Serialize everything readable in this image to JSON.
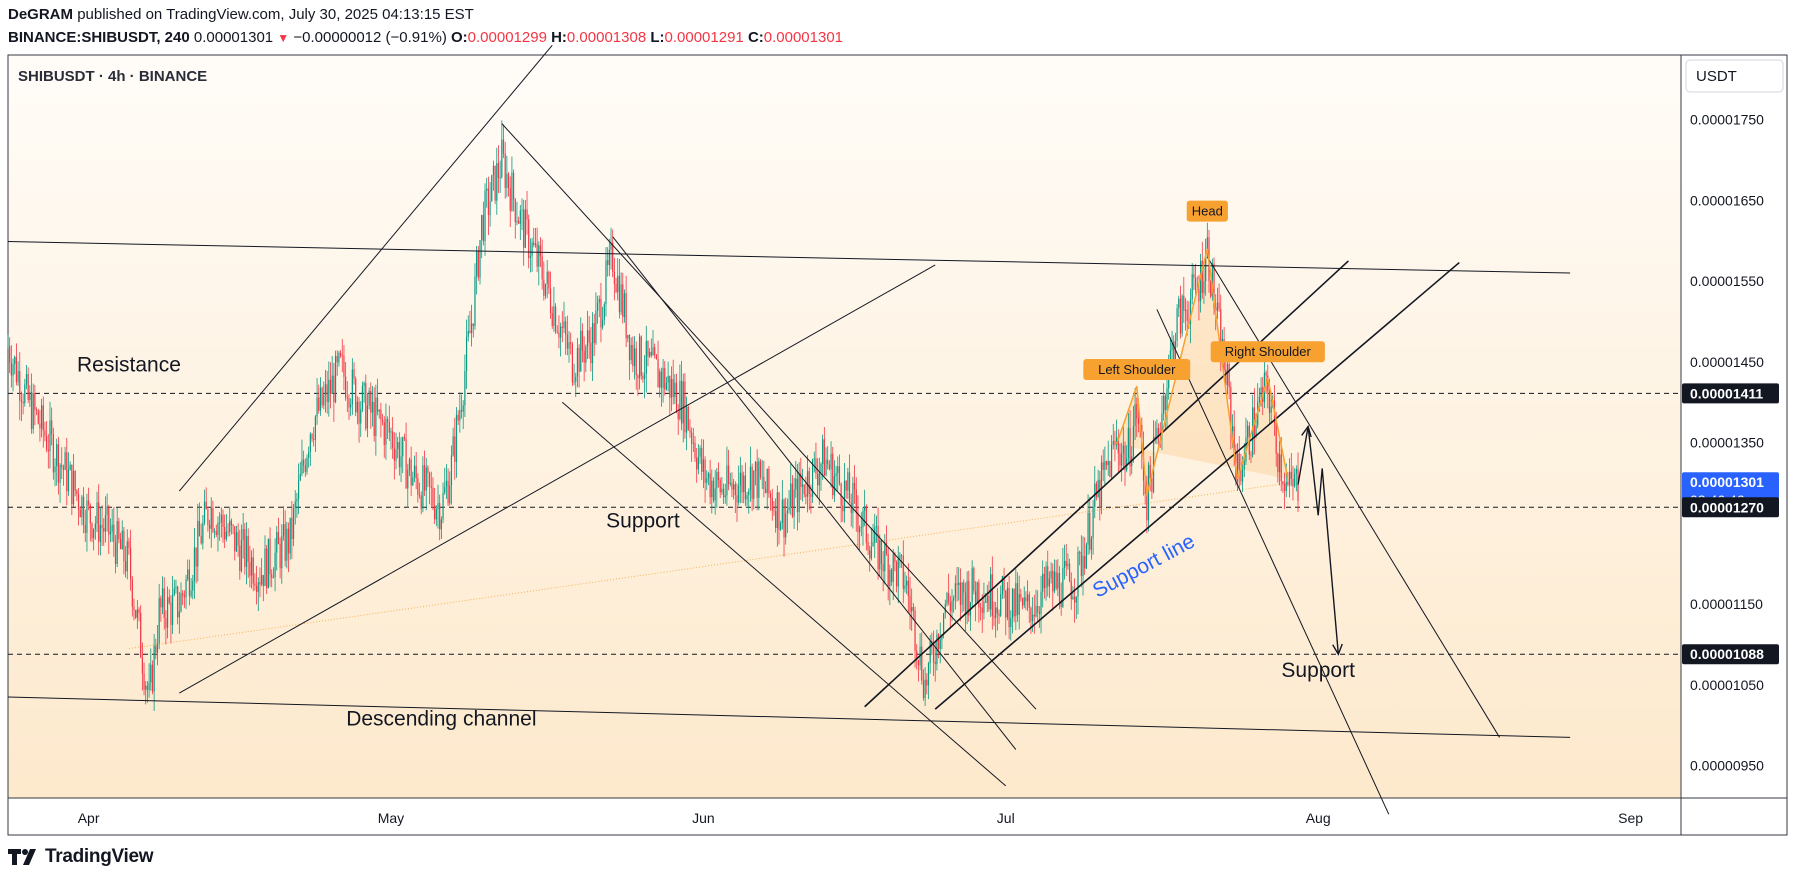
{
  "header": {
    "author": "DeGRAM",
    "published_text": "published on TradingView.com, July 30, 2025 04:13:15 EST",
    "symbol": "BINANCE:SHIBUSDT, 240",
    "last": "0.00001301",
    "change": "−0.00000012 (−0.91%)",
    "o_label": "O:",
    "o_value": "0.00001299",
    "h_label": "H:",
    "h_value": "0.00001308",
    "l_label": "L:",
    "l_value": "0.00001291",
    "c_label": "C:",
    "c_value": "0.00001301"
  },
  "chart_title": "SHIBUSDT · 4h · BINANCE",
  "currency": "USDT",
  "footer": {
    "brand": "TradingView"
  },
  "colors": {
    "up": "#089981",
    "down": "#f23645",
    "accent_blue": "#2962ff",
    "label_orange": "#f7a130",
    "bg_top": "#fffcf8",
    "bg_bottom": "#fde9cc"
  },
  "chart_data": {
    "type": "candlestick",
    "ylim": [
      9.1e-06,
      1.83e-05
    ],
    "y_ticks": [
      "0.00001750",
      "0.00001650",
      "0.00001550",
      "0.00001450",
      "0.00001350",
      "0.00001150",
      "0.00001050",
      "0.00000950"
    ],
    "x_ticks": [
      "Apr",
      "May",
      "Jun",
      "Jul",
      "Aug",
      "Sep"
    ],
    "price_labels": [
      {
        "text": "0.00001411",
        "value": 1.411e-05,
        "style": "dark"
      },
      {
        "text": "0.00001301",
        "sub": "02:46:46",
        "value": 1.301e-05,
        "style": "blue"
      },
      {
        "text": "0.00001270",
        "value": 1.27e-05,
        "style": "dark"
      },
      {
        "text": "0.00001088",
        "value": 1.088e-05,
        "style": "dark"
      }
    ],
    "horizontal_levels": [
      1.411e-05,
      1.27e-05,
      1.088e-05
    ],
    "price_path_points": [
      {
        "date": "2025-03-24",
        "price": 1.47e-05
      },
      {
        "date": "2025-03-26",
        "price": 1.4e-05
      },
      {
        "date": "2025-03-29",
        "price": 1.33e-05
      },
      {
        "date": "2025-04-01",
        "price": 1.26e-05
      },
      {
        "date": "2025-04-03",
        "price": 1.24e-05
      },
      {
        "date": "2025-04-05",
        "price": 1.2e-05
      },
      {
        "date": "2025-04-07",
        "price": 1.03e-05
      },
      {
        "date": "2025-04-08",
        "price": 1.14e-05
      },
      {
        "date": "2025-04-10",
        "price": 1.15e-05
      },
      {
        "date": "2025-04-13",
        "price": 1.27e-05
      },
      {
        "date": "2025-04-16",
        "price": 1.22e-05
      },
      {
        "date": "2025-04-18",
        "price": 1.19e-05
      },
      {
        "date": "2025-04-21",
        "price": 1.23e-05
      },
      {
        "date": "2025-04-23",
        "price": 1.37e-05
      },
      {
        "date": "2025-04-26",
        "price": 1.44e-05
      },
      {
        "date": "2025-04-28",
        "price": 1.4e-05
      },
      {
        "date": "2025-05-01",
        "price": 1.36e-05
      },
      {
        "date": "2025-05-03",
        "price": 1.31e-05
      },
      {
        "date": "2025-05-06",
        "price": 1.27e-05
      },
      {
        "date": "2025-05-07",
        "price": 1.32e-05
      },
      {
        "date": "2025-05-09",
        "price": 1.5e-05
      },
      {
        "date": "2025-05-10",
        "price": 1.62e-05
      },
      {
        "date": "2025-05-12",
        "price": 1.7e-05
      },
      {
        "date": "2025-05-14",
        "price": 1.62e-05
      },
      {
        "date": "2025-05-16",
        "price": 1.56e-05
      },
      {
        "date": "2025-05-19",
        "price": 1.45e-05
      },
      {
        "date": "2025-05-21",
        "price": 1.48e-05
      },
      {
        "date": "2025-05-23",
        "price": 1.58e-05
      },
      {
        "date": "2025-05-25",
        "price": 1.46e-05
      },
      {
        "date": "2025-05-28",
        "price": 1.43e-05
      },
      {
        "date": "2025-05-30",
        "price": 1.4e-05
      },
      {
        "date": "2025-06-01",
        "price": 1.31e-05
      },
      {
        "date": "2025-06-03",
        "price": 1.29e-05
      },
      {
        "date": "2025-06-06",
        "price": 1.31e-05
      },
      {
        "date": "2025-06-09",
        "price": 1.26e-05
      },
      {
        "date": "2025-06-11",
        "price": 1.3e-05
      },
      {
        "date": "2025-06-13",
        "price": 1.33e-05
      },
      {
        "date": "2025-06-16",
        "price": 1.27e-05
      },
      {
        "date": "2025-06-18",
        "price": 1.22e-05
      },
      {
        "date": "2025-06-21",
        "price": 1.18e-05
      },
      {
        "date": "2025-06-22",
        "price": 1.12e-05
      },
      {
        "date": "2025-06-23",
        "price": 1.05e-05
      },
      {
        "date": "2025-06-25",
        "price": 1.15e-05
      },
      {
        "date": "2025-06-28",
        "price": 1.17e-05
      },
      {
        "date": "2025-06-30",
        "price": 1.16e-05
      },
      {
        "date": "2025-07-03",
        "price": 1.14e-05
      },
      {
        "date": "2025-07-05",
        "price": 1.17e-05
      },
      {
        "date": "2025-07-08",
        "price": 1.18e-05
      },
      {
        "date": "2025-07-10",
        "price": 1.28e-05
      },
      {
        "date": "2025-07-12",
        "price": 1.35e-05
      },
      {
        "date": "2025-07-13",
        "price": 1.33e-05
      },
      {
        "date": "2025-07-14",
        "price": 1.39e-05
      },
      {
        "date": "2025-07-15",
        "price": 1.28e-05
      },
      {
        "date": "2025-07-17",
        "price": 1.43e-05
      },
      {
        "date": "2025-07-18",
        "price": 1.5e-05
      },
      {
        "date": "2025-07-20",
        "price": 1.54e-05
      },
      {
        "date": "2025-07-21",
        "price": 1.59e-05
      },
      {
        "date": "2025-07-22",
        "price": 1.5e-05
      },
      {
        "date": "2025-07-23",
        "price": 1.42e-05
      },
      {
        "date": "2025-07-24",
        "price": 1.31e-05
      },
      {
        "date": "2025-07-26",
        "price": 1.39e-05
      },
      {
        "date": "2025-07-27",
        "price": 1.42e-05
      },
      {
        "date": "2025-07-28",
        "price": 1.34e-05
      },
      {
        "date": "2025-07-29",
        "price": 1.29e-05
      },
      {
        "date": "2025-07-30",
        "price": 1.301e-05
      }
    ],
    "trend_lines": [
      {
        "p1": {
          "date": "2025-03-24",
          "price": 1.599e-05
        },
        "p2": {
          "date": "2025-08-26",
          "price": 1.56e-05
        }
      },
      {
        "p1": {
          "date": "2025-03-24",
          "price": 1.035e-05
        },
        "p2": {
          "date": "2025-08-26",
          "price": 9.85e-06
        }
      },
      {
        "p1": {
          "date": "2025-04-10",
          "price": 1.04e-05
        },
        "p2": {
          "date": "2025-06-24",
          "price": 1.57e-05
        }
      },
      {
        "p1": {
          "date": "2025-04-10",
          "price": 1.29e-05
        },
        "p2": {
          "date": "2025-05-17",
          "price": 1.842e-05
        }
      },
      {
        "p1": {
          "date": "2025-05-12",
          "price": 1.745e-05
        },
        "p2": {
          "date": "2025-07-04",
          "price": 1.02e-05
        }
      },
      {
        "p1": {
          "date": "2025-05-23",
          "price": 1.605e-05
        },
        "p2": {
          "date": "2025-07-02",
          "price": 9.7e-06
        }
      },
      {
        "p1": {
          "date": "2025-05-18",
          "price": 1.4e-05
        },
        "p2": {
          "date": "2025-07-01",
          "price": 9.25e-06
        }
      },
      {
        "p1": {
          "date": "2025-06-17",
          "price": 1.023e-05
        },
        "p2": {
          "date": "2025-08-04",
          "price": 1.575e-05
        }
      },
      {
        "p1": {
          "date": "2025-06-24",
          "price": 1.02e-05
        },
        "p2": {
          "date": "2025-08-15",
          "price": 1.573e-05
        }
      },
      {
        "p1": {
          "date": "2025-07-16",
          "price": 1.515e-05
        },
        "p2": {
          "date": "2025-08-08",
          "price": 8.9e-06
        }
      },
      {
        "p1": {
          "date": "2025-07-21",
          "price": 1.58e-05
        },
        "p2": {
          "date": "2025-08-19",
          "price": 9.85e-06
        }
      }
    ],
    "forecast_path": [
      {
        "date": "2025-07-30",
        "price": 1.298e-05
      },
      {
        "date": "2025-07-31",
        "price": 1.37e-05
      },
      {
        "date": "2025-08-01",
        "price": 1.26e-05
      },
      {
        "date": "2025-08-01",
        "price": 1.318e-05
      },
      {
        "date": "2025-08-03",
        "price": 1.088e-05
      }
    ],
    "pattern_polyline": [
      {
        "date": "2025-07-12",
        "price": 1.348e-05
      },
      {
        "date": "2025-07-14",
        "price": 1.42e-05
      },
      {
        "date": "2025-07-15",
        "price": 1.285e-05
      },
      {
        "date": "2025-07-21",
        "price": 1.59e-05
      },
      {
        "date": "2025-07-24",
        "price": 1.305e-05
      },
      {
        "date": "2025-07-27",
        "price": 1.43e-05
      },
      {
        "date": "2025-07-29",
        "price": 1.305e-05
      }
    ],
    "pattern_labels": [
      {
        "text": "Left Shoulder",
        "date": "2025-07-14",
        "price": 1.44e-05
      },
      {
        "text": "Head",
        "date": "2025-07-21",
        "price": 1.636e-05
      },
      {
        "text": "Right Shoulder",
        "date": "2025-07-27",
        "price": 1.462e-05
      }
    ],
    "annotations": [
      {
        "text": "Resistance",
        "date": "2025-04-05",
        "price": 1.438e-05
      },
      {
        "text": "Support",
        "date": "2025-05-26",
        "price": 1.245e-05
      },
      {
        "text": "Descending channel",
        "date": "2025-05-06",
        "price": 1e-05
      },
      {
        "text": "Support",
        "date": "2025-08-01",
        "price": 1.06e-05
      },
      {
        "text": "Support line",
        "date": "2025-07-15",
        "price": 1.19e-05
      }
    ]
  }
}
